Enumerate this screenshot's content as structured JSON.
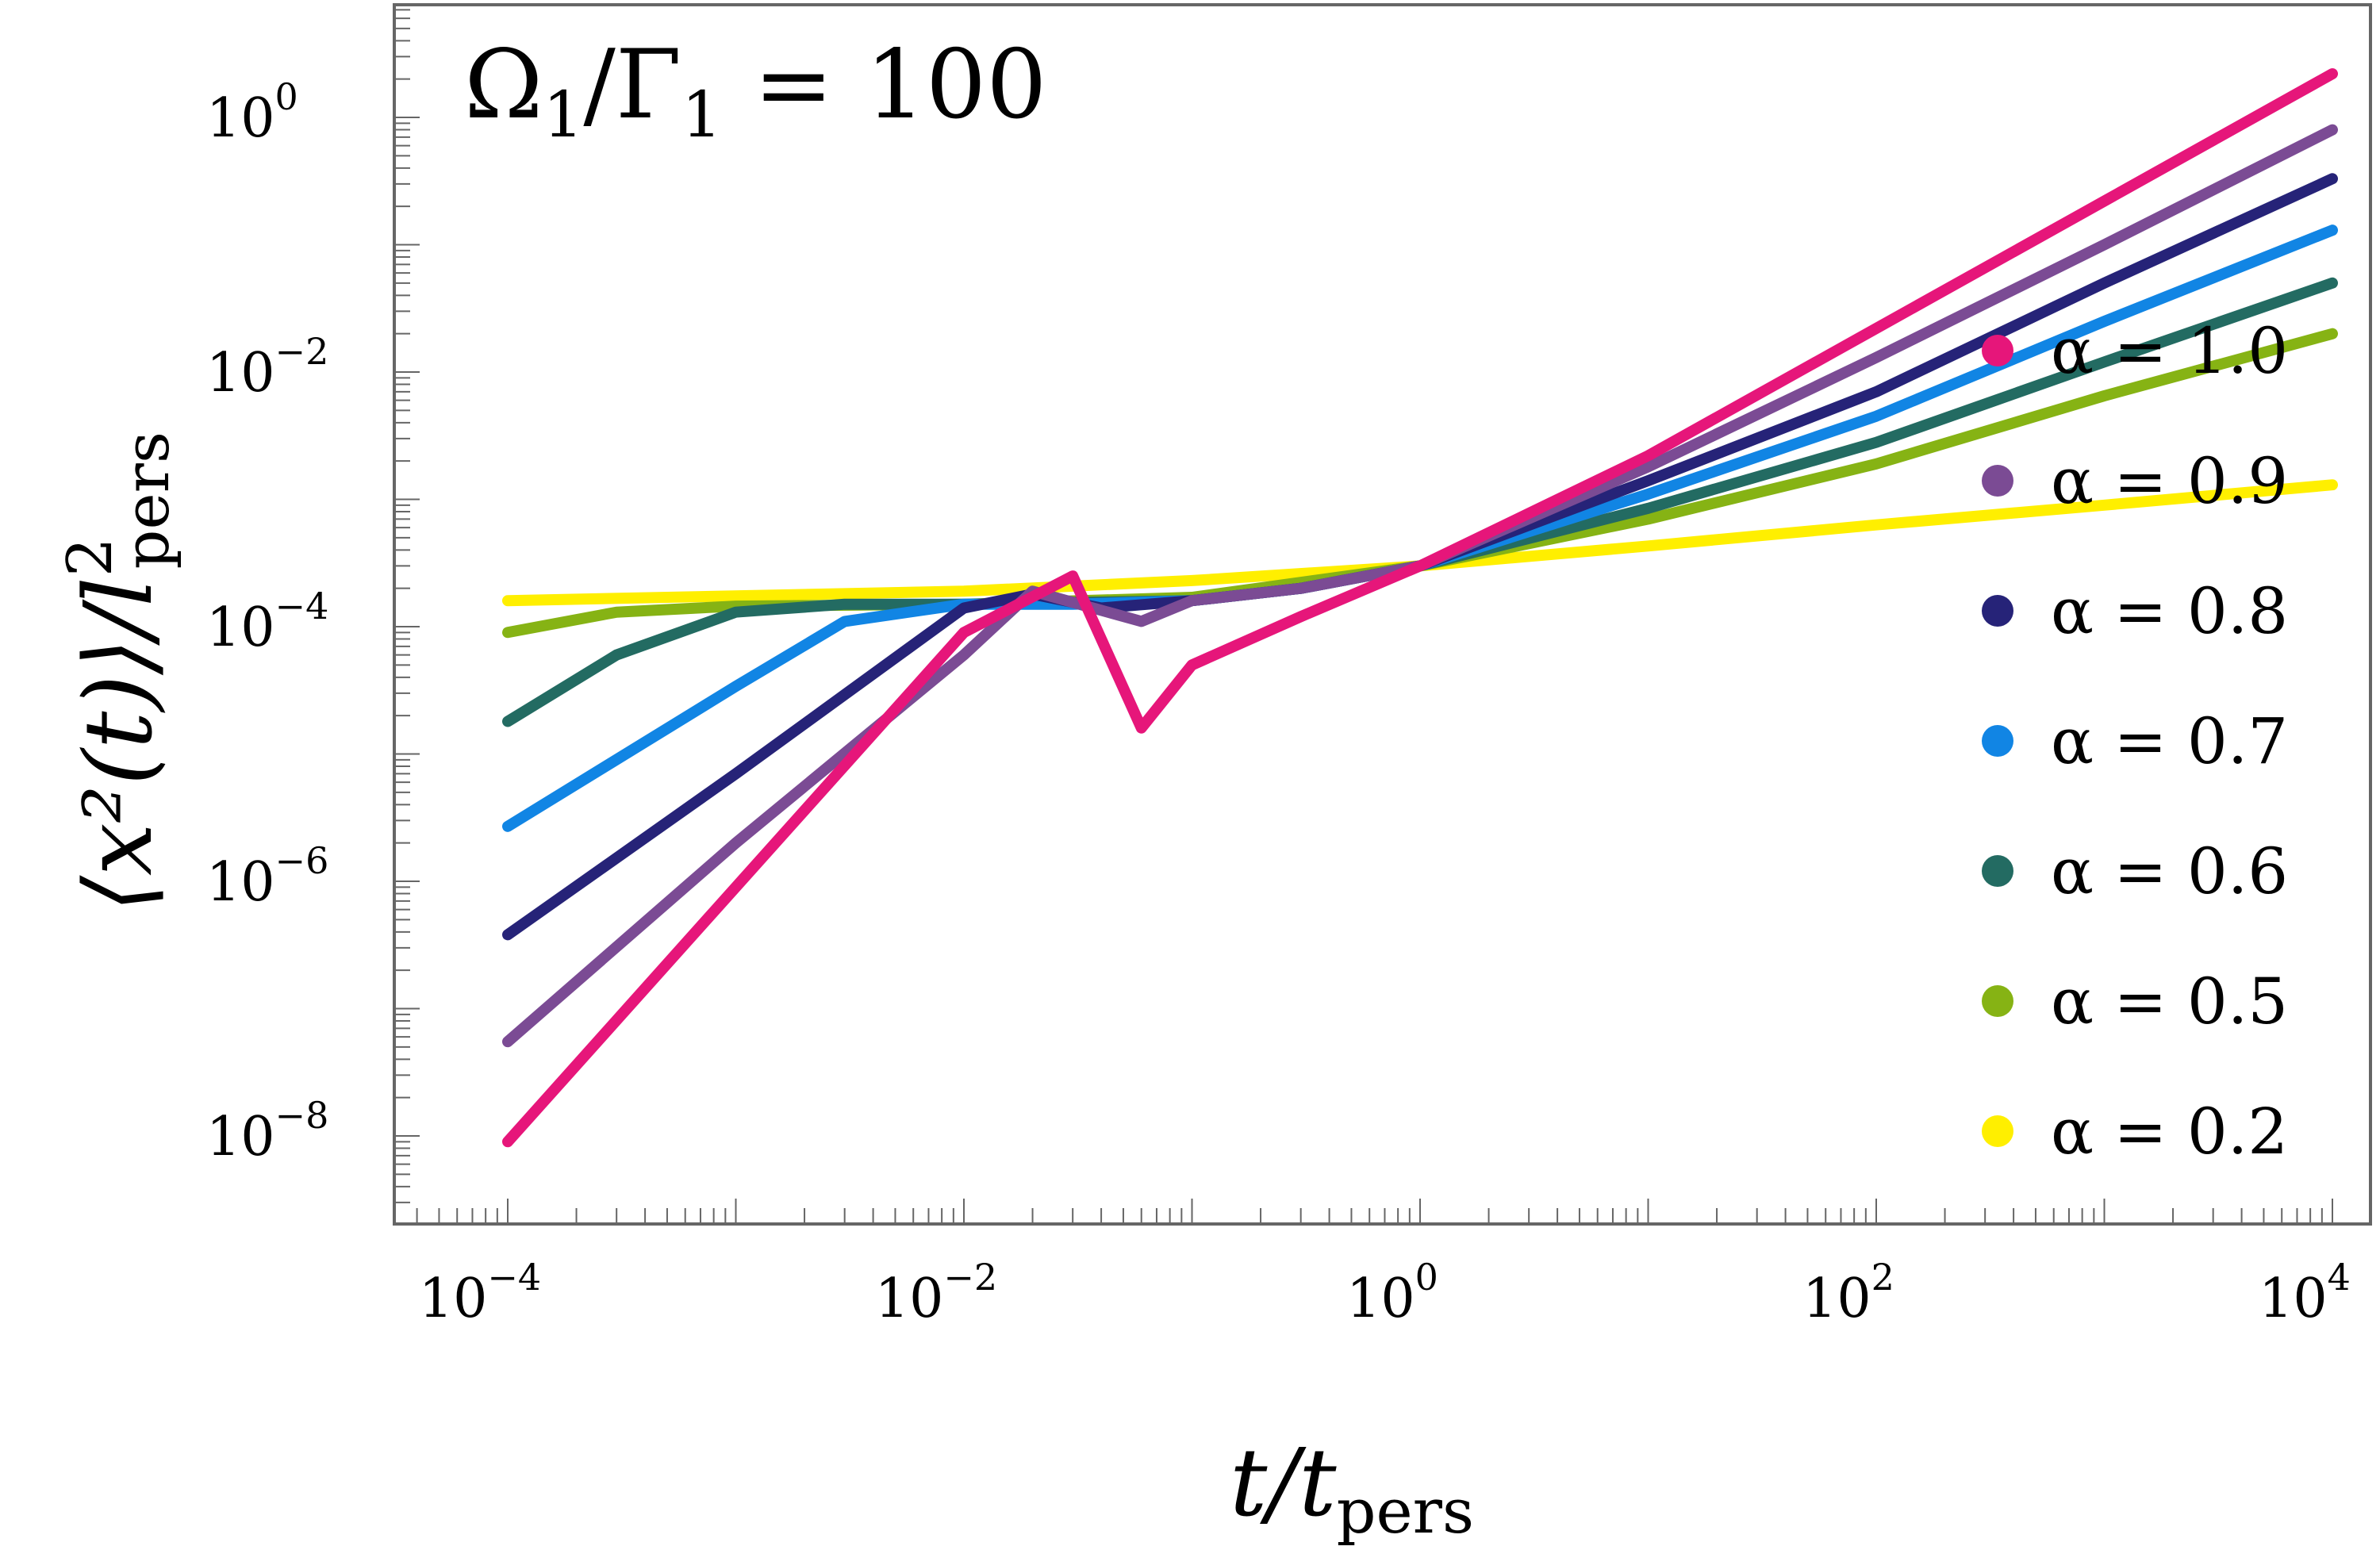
{
  "chart_data": {
    "type": "line",
    "annotation": {
      "numerator": "Ω",
      "numerator_sub": "1",
      "denominator": "Γ",
      "denominator_sub": "1",
      "relation": "=",
      "value": "100"
    },
    "xlabel": {
      "main": "t/t",
      "sub": "pers"
    },
    "ylabel": {
      "pre": "⟨x²(t)⟩/l",
      "sup": "2",
      "sub": "pers"
    },
    "x_scale": "log",
    "y_scale": "log",
    "xlim": [
      2e-05,
      10000
    ],
    "ylim": [
      5e-11,
      6
    ],
    "x_ticks": [
      {
        "base": "10",
        "exp": "−4",
        "value": 0.0001
      },
      {
        "base": "10",
        "exp": "−2",
        "value": 0.01
      },
      {
        "base": "10",
        "exp": "0",
        "value": 1
      },
      {
        "base": "10",
        "exp": "2",
        "value": 100
      },
      {
        "base": "10",
        "exp": "4",
        "value": 10000
      }
    ],
    "y_ticks": [
      {
        "base": "10",
        "exp": "0",
        "value": 1
      },
      {
        "base": "10",
        "exp": "−2",
        "value": 0.01
      },
      {
        "base": "10",
        "exp": "−4",
        "value": 0.0001
      },
      {
        "base": "10",
        "exp": "−6",
        "value": 1e-06
      },
      {
        "base": "10",
        "exp": "−8",
        "value": 1e-08
      }
    ],
    "legend_position": "right",
    "grid": false,
    "series": [
      {
        "name": "α = 1.0",
        "alpha": 1.0,
        "color": "#e6167a",
        "x": [
          0.0001,
          0.001,
          0.01,
          0.03,
          0.06,
          0.1,
          0.3,
          1,
          10,
          100,
          1000,
          10000
        ],
        "y": [
          9e-09,
          9e-07,
          9e-05,
          0.00025,
          1.6e-05,
          5e-05,
          0.00012,
          0.0003,
          0.0022,
          0.022,
          0.22,
          2.2
        ]
      },
      {
        "name": "α = 0.9",
        "alpha": 0.9,
        "color": "#7b4b94",
        "x": [
          0.0001,
          0.001,
          0.01,
          0.02,
          0.06,
          0.1,
          0.3,
          1,
          10,
          100,
          1000,
          10000
        ],
        "y": [
          5.5e-08,
          2e-06,
          6e-05,
          0.00019,
          0.00011,
          0.00016,
          0.0002,
          0.0003,
          0.0018,
          0.013,
          0.1,
          0.8
        ]
      },
      {
        "name": "α = 0.8",
        "alpha": 0.8,
        "color": "#262378",
        "x": [
          0.0001,
          0.001,
          0.01,
          0.02,
          0.04,
          0.1,
          0.3,
          1,
          10,
          100,
          1000,
          10000
        ],
        "y": [
          3.8e-07,
          7e-06,
          0.00014,
          0.00018,
          0.00014,
          0.00016,
          0.0002,
          0.0003,
          0.0014,
          0.007,
          0.05,
          0.33
        ]
      },
      {
        "name": "α = 0.7",
        "alpha": 0.7,
        "color": "#1185e4",
        "x": [
          0.0001,
          0.001,
          0.003,
          0.01,
          0.03,
          0.1,
          0.3,
          1,
          10,
          100,
          1000,
          10000
        ],
        "y": [
          2.7e-06,
          3.4e-05,
          0.00011,
          0.00015,
          0.00015,
          0.00016,
          0.0002,
          0.0003,
          0.0011,
          0.0045,
          0.025,
          0.13
        ]
      },
      {
        "name": "α = 0.6",
        "alpha": 0.6,
        "color": "#236b62",
        "x": [
          0.0001,
          0.0003,
          0.001,
          0.003,
          0.01,
          0.1,
          0.3,
          1,
          10,
          100,
          1000,
          10000
        ],
        "y": [
          1.8e-05,
          6e-05,
          0.00013,
          0.00015,
          0.00015,
          0.00016,
          0.0002,
          0.0003,
          0.00085,
          0.0028,
          0.012,
          0.05
        ]
      },
      {
        "name": "α = 0.5",
        "alpha": 0.5,
        "color": "#86b314",
        "x": [
          0.0001,
          0.0003,
          0.001,
          0.01,
          0.1,
          1,
          10,
          100,
          1000,
          10000
        ],
        "y": [
          9e-05,
          0.00013,
          0.000145,
          0.00015,
          0.00017,
          0.0003,
          0.0007,
          0.0019,
          0.0065,
          0.02
        ]
      },
      {
        "name": "α = 0.2",
        "alpha": 0.2,
        "color": "#ffef00",
        "x": [
          0.0001,
          0.01,
          0.1,
          1,
          10,
          100,
          1000,
          10000
        ],
        "y": [
          0.00016,
          0.00019,
          0.00023,
          0.0003,
          0.00043,
          0.00063,
          0.0009,
          0.0013
        ]
      }
    ]
  }
}
